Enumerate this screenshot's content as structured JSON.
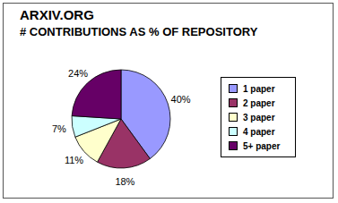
{
  "chart_data": {
    "type": "pie",
    "title": "ARXIV.ORG",
    "subtitle": "# CONTRIBUTIONS AS % OF REPOSITORY",
    "categories": [
      "1 paper",
      "2 paper",
      "3 paper",
      "4 paper",
      "5+ paper"
    ],
    "values": [
      40,
      18,
      11,
      7,
      24
    ],
    "value_labels": [
      "40%",
      "18%",
      "11%",
      "7%",
      "24%"
    ],
    "colors": [
      "#9999ff",
      "#993366",
      "#ffffcc",
      "#ccffff",
      "#660066"
    ],
    "data_labels": true,
    "legend": "right"
  }
}
